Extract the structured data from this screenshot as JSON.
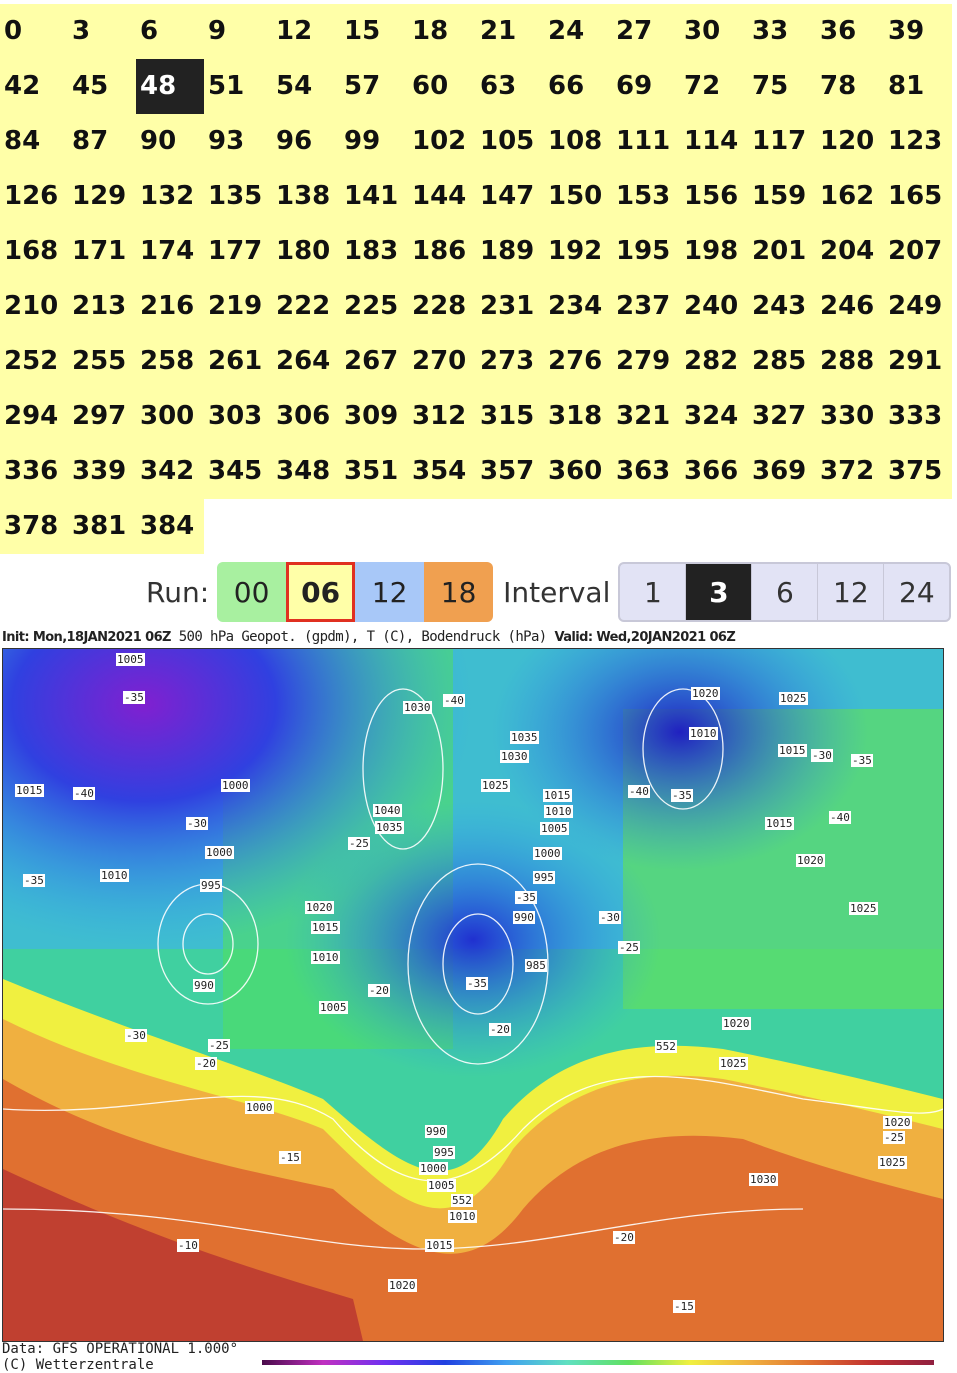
{
  "forecast_hours": {
    "items": [
      "0",
      "3",
      "6",
      "9",
      "12",
      "15",
      "18",
      "21",
      "24",
      "27",
      "30",
      "33",
      "36",
      "39",
      "42",
      "45",
      "48",
      "51",
      "54",
      "57",
      "60",
      "63",
      "66",
      "69",
      "72",
      "75",
      "78",
      "81",
      "84",
      "87",
      "90",
      "93",
      "96",
      "99",
      "102",
      "105",
      "108",
      "111",
      "114",
      "117",
      "120",
      "123",
      "126",
      "129",
      "132",
      "135",
      "138",
      "141",
      "144",
      "147",
      "150",
      "153",
      "156",
      "159",
      "162",
      "165",
      "168",
      "171",
      "174",
      "177",
      "180",
      "183",
      "186",
      "189",
      "192",
      "195",
      "198",
      "201",
      "204",
      "207",
      "210",
      "213",
      "216",
      "219",
      "222",
      "225",
      "228",
      "231",
      "234",
      "237",
      "240",
      "243",
      "246",
      "249",
      "252",
      "255",
      "258",
      "261",
      "264",
      "267",
      "270",
      "273",
      "276",
      "279",
      "282",
      "285",
      "288",
      "291",
      "294",
      "297",
      "300",
      "303",
      "306",
      "309",
      "312",
      "315",
      "318",
      "321",
      "324",
      "327",
      "330",
      "333",
      "336",
      "339",
      "342",
      "345",
      "348",
      "351",
      "354",
      "357",
      "360",
      "363",
      "366",
      "369",
      "372",
      "375",
      "378",
      "381",
      "384"
    ],
    "selected": "48"
  },
  "run": {
    "label": "Run:",
    "options": [
      {
        "label": "00",
        "color": "#a8f0a0"
      },
      {
        "label": "06",
        "color": "#ffffa8",
        "selected": true
      },
      {
        "label": "12",
        "color": "#a8c8f8"
      },
      {
        "label": "18",
        "color": "#f0a050"
      }
    ]
  },
  "interval": {
    "label": "Interval",
    "options": [
      "1",
      "3",
      "6",
      "12",
      "24"
    ],
    "selected": "3"
  },
  "map": {
    "init": "Init: Mon,18JAN2021 06Z",
    "title": "500 hPa Geopot. (gpdm), T (C), Bodendruck (hPa)",
    "valid": "Valid: Wed,20JAN2021 06Z",
    "labels": [
      "1005",
      "-35",
      "1015",
      "-40",
      "1000",
      "-30",
      "1000",
      "995",
      "1010",
      "-35",
      "990",
      "-30",
      "-25",
      "-20",
      "1000",
      "1020",
      "1015",
      "1010",
      "1005",
      "-20",
      "1030",
      "-40",
      "1040",
      "1035",
      "-25",
      "1035",
      "1030",
      "1025",
      "1015",
      "1010",
      "1005",
      "1000",
      "995",
      "-35",
      "990",
      "-30",
      "-25",
      "985",
      "-35",
      "-20",
      "990",
      "995",
      "1000",
      "1005",
      "552",
      "1010",
      "1015",
      "1020",
      "1020",
      "-40",
      "-35",
      "1010",
      "1025",
      "1015",
      "-30",
      "-35",
      "1015",
      "-40",
      "1020",
      "1025",
      "1020",
      "552",
      "1025",
      "1030",
      "1020",
      "-25",
      "1025",
      "-20",
      "-15",
      "-10",
      "-15"
    ]
  },
  "footer": {
    "data": "Data: GFS OPERATIONAL 1.000°",
    "copyright": "(C) Wetterzentrale"
  }
}
